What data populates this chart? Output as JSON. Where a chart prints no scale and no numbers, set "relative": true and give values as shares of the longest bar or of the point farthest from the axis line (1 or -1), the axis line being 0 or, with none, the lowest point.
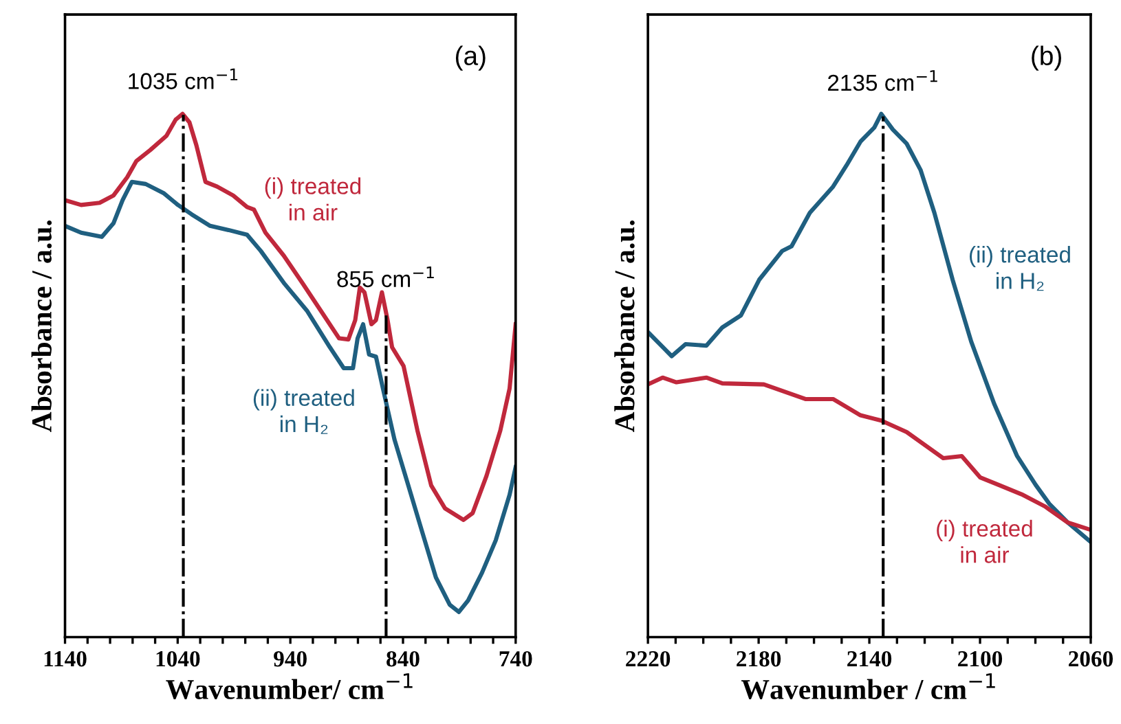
{
  "chart_data": [
    {
      "type": "line",
      "relative": true,
      "xlabel": "Wavenumber/ cm$^{−1}$",
      "ylabel": "Absorbance / a.u.",
      "annotations": [
        "(a)"
      ],
      "grid": false,
      "line_style": "solid",
      "xlim": [
        1140,
        740
      ],
      "xticks": [
        1140,
        {
          "value": 1120,
          "label": null
        },
        {
          "value": 1100,
          "label": null
        },
        {
          "value": 1080,
          "label": null
        },
        {
          "value": 1060,
          "label": null
        },
        1040,
        {
          "value": 1020,
          "label": null
        },
        {
          "value": 1000,
          "label": null
        },
        {
          "value": 980,
          "label": null
        },
        {
          "value": 960,
          "label": null
        },
        940,
        {
          "value": 920,
          "label": null
        },
        {
          "value": 900,
          "label": null
        },
        {
          "value": 880,
          "label": null
        },
        {
          "value": 860,
          "label": null
        },
        840,
        {
          "value": 820,
          "label": null
        },
        {
          "value": 800,
          "label": null
        },
        {
          "value": 780,
          "label": null
        },
        {
          "value": 760,
          "label": null
        },
        740
      ],
      "ref_lines": [
        {
          "axis": "x",
          "value": 1035,
          "label": "1035 cm$^{−1}$",
          "line_style": "dashdot",
          "color": "#000000"
        },
        {
          "axis": "x",
          "value": 855,
          "label": "855 cm$^{−1}$",
          "line_style": "dashdot",
          "color": "#000000"
        }
      ],
      "series": [
        {
          "name": "(i) treated\nin air",
          "color": "#c0283c",
          "x": [
            1140,
            1125.7,
            1109.3,
            1097,
            1084.8,
            1076.6,
            1064.3,
            1050,
            1041.8,
            1035.7,
            1029.6,
            1023.4,
            1015.3,
            1005,
            990.7,
            978.4,
            972.3,
            962.1,
            945.8,
            929.4,
            913,
            896.7,
            888.5,
            882.4,
            878.3,
            874.2,
            868,
            864,
            858.7,
            853.7,
            849.7,
            839.5,
            827.2,
            815,
            802.7,
            786.3,
            778.2,
            765.9,
            753.6,
            745.4,
            740
          ],
          "values": [
            0.835,
            0.826,
            0.83,
            0.844,
            0.879,
            0.91,
            0.931,
            0.958,
            0.989,
            1.0,
            0.984,
            0.94,
            0.87,
            0.861,
            0.844,
            0.822,
            0.817,
            0.773,
            0.729,
            0.677,
            0.624,
            0.571,
            0.569,
            0.606,
            0.668,
            0.659,
            0.598,
            0.606,
            0.659,
            0.606,
            0.554,
            0.518,
            0.395,
            0.29,
            0.246,
            0.224,
            0.237,
            0.308,
            0.395,
            0.475,
            0.598
          ]
        },
        {
          "name": "(ii) treated\nin H₂",
          "color": "#1f5f80",
          "x": [
            1140,
            1125.7,
            1107.3,
            1097,
            1088.9,
            1080.7,
            1068.4,
            1052.1,
            1039.8,
            1027.6,
            1011.2,
            994.8,
            978.4,
            966.2,
            945.8,
            925.3,
            904.9,
            892.6,
            884.4,
            880.3,
            875.4,
            870.1,
            864,
            857.8,
            847.6,
            835.3,
            823.1,
            810.8,
            798.5,
            790.4,
            782.2,
            769.9,
            757.7,
            745.4,
            740
          ],
          "values": [
            0.786,
            0.773,
            0.765,
            0.791,
            0.835,
            0.87,
            0.866,
            0.848,
            0.826,
            0.808,
            0.786,
            0.778,
            0.769,
            0.738,
            0.677,
            0.624,
            0.554,
            0.514,
            0.514,
            0.571,
            0.598,
            0.54,
            0.536,
            0.475,
            0.378,
            0.29,
            0.202,
            0.114,
            0.062,
            0.048,
            0.07,
            0.123,
            0.185,
            0.272,
            0.325
          ]
        }
      ]
    },
    {
      "type": "line",
      "relative": true,
      "xlabel": "Wavenumber / cm$^{−1}$",
      "ylabel": "Absorbance / a.u.",
      "annotations": [
        "(b)"
      ],
      "grid": false,
      "line_style": "solid",
      "xlim": [
        2220,
        2060
      ],
      "xticks": [
        2220,
        {
          "value": 2210,
          "label": null
        },
        {
          "value": 2200,
          "label": null
        },
        {
          "value": 2190,
          "label": null
        },
        2180,
        {
          "value": 2170,
          "label": null
        },
        {
          "value": 2160,
          "label": null
        },
        {
          "value": 2150,
          "label": null
        },
        2140,
        {
          "value": 2130,
          "label": null
        },
        {
          "value": 2120,
          "label": null
        },
        {
          "value": 2110,
          "label": null
        },
        2100,
        {
          "value": 2090,
          "label": null
        },
        {
          "value": 2080,
          "label": null
        },
        {
          "value": 2070,
          "label": null
        },
        2060
      ],
      "ref_lines": [
        {
          "axis": "x",
          "value": 2135,
          "label": "2135 cm$^{−1}$",
          "line_style": "dashdot",
          "color": "#000000"
        }
      ],
      "series": [
        {
          "name": "(ii) treated\nin H₂",
          "color": "#1f5f80",
          "x": [
            2220,
            2211.4,
            2206.4,
            2198.9,
            2193.1,
            2186.4,
            2179.8,
            2171.5,
            2168.1,
            2161.5,
            2153.1,
            2148.2,
            2143.2,
            2138.2,
            2135.7,
            2131.5,
            2126.5,
            2121.5,
            2116.5,
            2109.9,
            2103.2,
            2094.9,
            2086.6,
            2079.9,
            2075,
            2068.3,
            2060
          ],
          "values": [
            0.583,
            0.537,
            0.56,
            0.557,
            0.592,
            0.615,
            0.683,
            0.738,
            0.747,
            0.811,
            0.861,
            0.902,
            0.947,
            0.974,
            1.0,
            0.97,
            0.943,
            0.893,
            0.811,
            0.683,
            0.565,
            0.446,
            0.346,
            0.291,
            0.255,
            0.219,
            0.182
          ]
        },
        {
          "name": "(i) treated\nin air",
          "color": "#c0283c",
          "x": [
            2220,
            2214.7,
            2209.7,
            2198.9,
            2193.1,
            2178.1,
            2163.1,
            2153.1,
            2143.2,
            2135.7,
            2126.5,
            2113.3,
            2106.6,
            2099.9,
            2093.3,
            2085,
            2076.6,
            2068.3,
            2060
          ],
          "values": [
            0.483,
            0.496,
            0.487,
            0.496,
            0.485,
            0.483,
            0.455,
            0.455,
            0.424,
            0.414,
            0.392,
            0.342,
            0.346,
            0.305,
            0.291,
            0.273,
            0.25,
            0.219,
            0.205
          ]
        }
      ]
    }
  ]
}
